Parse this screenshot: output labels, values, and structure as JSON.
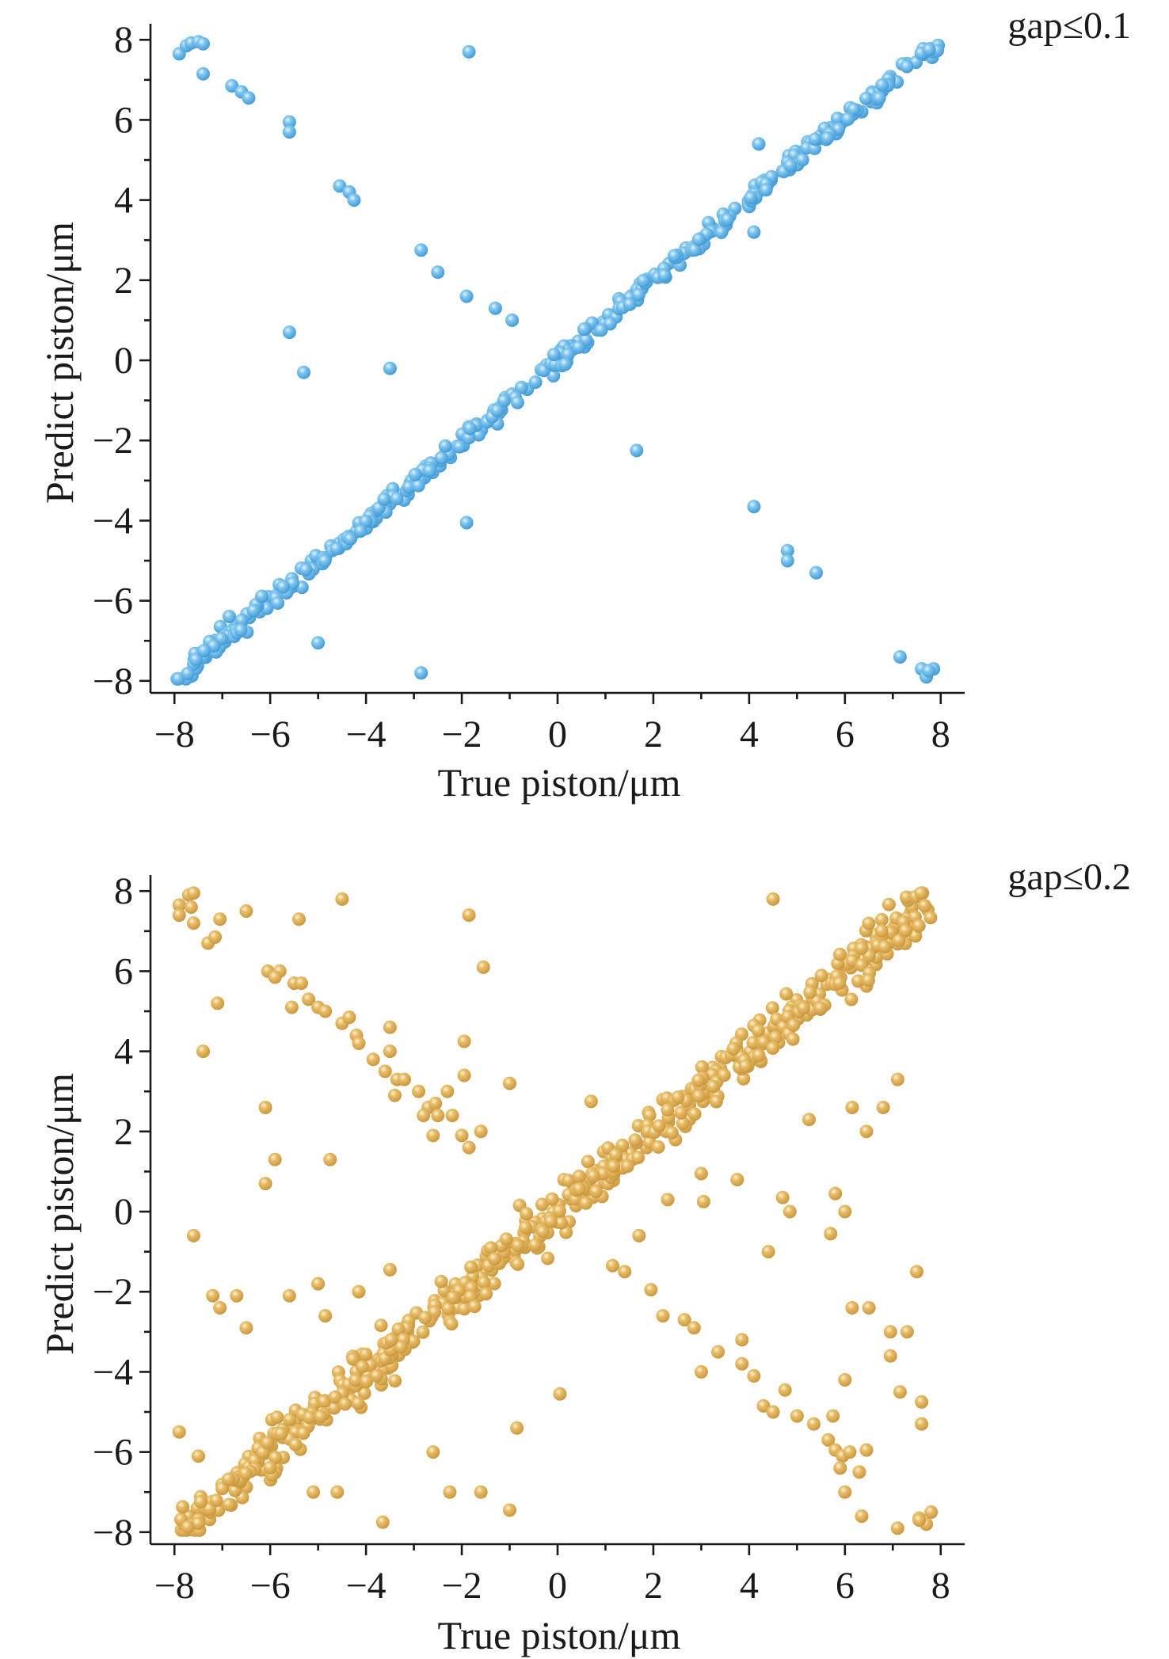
{
  "chart_data": [
    {
      "type": "scatter",
      "annotation": "gap≤0.1",
      "xlabel": "True piston/μm",
      "ylabel": "Predict piston/μm",
      "xlim": [
        -8.5,
        8.5
      ],
      "ylim": [
        -8.3,
        8.4
      ],
      "xticks": [
        -8,
        -6,
        -4,
        -2,
        0,
        2,
        4,
        6,
        8
      ],
      "yticks": [
        -8,
        -6,
        -4,
        -2,
        0,
        2,
        4,
        6,
        8
      ],
      "xtick_labels": [
        "−8",
        "−6",
        "−4",
        "−2",
        "0",
        "2",
        "4",
        "6",
        "8"
      ],
      "ytick_labels": [
        "−8",
        "−6",
        "−4",
        "−2",
        "0",
        "2",
        "4",
        "6",
        "8"
      ],
      "grid": false,
      "marker_color": "#6bb8e8",
      "series": [
        {
          "diagonal": {
            "x_range": [
              -7.95,
              7.95
            ],
            "n": 380,
            "noise": 0.13,
            "seed": 11
          },
          "points": [
            [
              -7.9,
              7.65
            ],
            [
              -7.75,
              7.85
            ],
            [
              -7.65,
              7.92
            ],
            [
              -7.5,
              7.95
            ],
            [
              -7.4,
              7.9
            ],
            [
              -7.4,
              7.15
            ],
            [
              -6.8,
              6.85
            ],
            [
              -6.6,
              6.7
            ],
            [
              -6.45,
              6.55
            ],
            [
              -5.6,
              5.95
            ],
            [
              -5.6,
              5.7
            ],
            [
              -5.6,
              0.7
            ],
            [
              -5.3,
              -0.3
            ],
            [
              -4.55,
              4.35
            ],
            [
              -4.35,
              4.2
            ],
            [
              -4.25,
              4.0
            ],
            [
              -3.5,
              -0.2
            ],
            [
              -2.85,
              2.75
            ],
            [
              -2.5,
              2.2
            ],
            [
              -1.9,
              1.6
            ],
            [
              -1.3,
              1.3
            ],
            [
              -0.95,
              1.0
            ],
            [
              -1.85,
              7.7
            ],
            [
              -1.9,
              -4.05
            ],
            [
              -2.85,
              -7.8
            ],
            [
              -5.0,
              -7.05
            ],
            [
              1.65,
              -2.25
            ],
            [
              4.1,
              -3.65
            ],
            [
              4.8,
              -4.75
            ],
            [
              4.8,
              -5.0
            ],
            [
              5.4,
              -5.3
            ],
            [
              4.2,
              5.4
            ],
            [
              4.1,
              3.2
            ],
            [
              7.15,
              -7.4
            ],
            [
              7.6,
              -7.7
            ],
            [
              7.7,
              -7.9
            ],
            [
              7.85,
              -7.7
            ],
            [
              7.75,
              -7.75
            ]
          ]
        }
      ]
    },
    {
      "type": "scatter",
      "annotation": "gap≤0.2",
      "xlabel": "True piston/μm",
      "ylabel": "Predict piston/μm",
      "xlim": [
        -8.5,
        8.5
      ],
      "ylim": [
        -8.3,
        8.4
      ],
      "xticks": [
        -8,
        -6,
        -4,
        -2,
        0,
        2,
        4,
        6,
        8
      ],
      "yticks": [
        -8,
        -6,
        -4,
        -2,
        0,
        2,
        4,
        6,
        8
      ],
      "xtick_labels": [
        "−8",
        "−6",
        "−4",
        "−2",
        "0",
        "2",
        "4",
        "6",
        "8"
      ],
      "ytick_labels": [
        "−8",
        "−6",
        "−4",
        "−2",
        "0",
        "2",
        "4",
        "6",
        "8"
      ],
      "grid": false,
      "marker_color": "#e2b458",
      "series": [
        {
          "diagonal": {
            "x_range": [
              -7.95,
              7.95
            ],
            "n": 560,
            "noise": 0.32,
            "seed": 29
          },
          "points": [
            [
              -7.9,
              7.65
            ],
            [
              -7.9,
              7.4
            ],
            [
              -7.7,
              7.9
            ],
            [
              -7.6,
              7.95
            ],
            [
              -7.65,
              7.6
            ],
            [
              -7.6,
              7.2
            ],
            [
              -7.05,
              7.3
            ],
            [
              -7.3,
              6.7
            ],
            [
              -7.15,
              6.85
            ],
            [
              -6.5,
              7.5
            ],
            [
              -5.4,
              7.3
            ],
            [
              -4.5,
              7.8
            ],
            [
              -1.85,
              7.4
            ],
            [
              -1.55,
              6.1
            ],
            [
              -6.05,
              6.0
            ],
            [
              -5.8,
              6.0
            ],
            [
              -5.9,
              5.85
            ],
            [
              -5.5,
              5.7
            ],
            [
              -5.35,
              5.7
            ],
            [
              -5.55,
              5.1
            ],
            [
              -5.2,
              5.3
            ],
            [
              -5.0,
              5.1
            ],
            [
              -4.85,
              5.0
            ],
            [
              -4.5,
              4.7
            ],
            [
              -4.35,
              4.85
            ],
            [
              -4.2,
              4.4
            ],
            [
              -4.15,
              4.2
            ],
            [
              -3.85,
              3.8
            ],
            [
              -3.6,
              3.5
            ],
            [
              -3.5,
              4.6
            ],
            [
              -3.5,
              4.0
            ],
            [
              -3.35,
              3.3
            ],
            [
              -3.4,
              2.9
            ],
            [
              -3.2,
              3.3
            ],
            [
              -2.9,
              3.0
            ],
            [
              -2.7,
              2.6
            ],
            [
              -2.8,
              2.4
            ],
            [
              -2.55,
              2.7
            ],
            [
              -2.5,
              2.4
            ],
            [
              -2.6,
              1.9
            ],
            [
              -2.3,
              3.0
            ],
            [
              -2.2,
              2.4
            ],
            [
              -1.95,
              4.25
            ],
            [
              -1.95,
              3.4
            ],
            [
              -2.0,
              1.9
            ],
            [
              -1.85,
              1.6
            ],
            [
              -1.6,
              2.0
            ],
            [
              -1.0,
              3.2
            ],
            [
              -7.1,
              5.2
            ],
            [
              -7.4,
              4.0
            ],
            [
              -6.1,
              2.6
            ],
            [
              -5.9,
              1.3
            ],
            [
              -6.1,
              0.7
            ],
            [
              -4.75,
              1.3
            ],
            [
              -7.6,
              -0.6
            ],
            [
              -7.2,
              -2.1
            ],
            [
              -7.05,
              -2.4
            ],
            [
              -6.7,
              -2.1
            ],
            [
              -6.5,
              -2.9
            ],
            [
              -5.6,
              -2.1
            ],
            [
              -5.0,
              -1.8
            ],
            [
              -4.85,
              -2.6
            ],
            [
              -4.15,
              -2.0
            ],
            [
              -3.5,
              -1.45
            ],
            [
              -7.9,
              -5.5
            ],
            [
              -7.5,
              -6.1
            ],
            [
              -5.1,
              -7.0
            ],
            [
              -4.6,
              -7.0
            ],
            [
              -3.65,
              -7.75
            ],
            [
              -2.6,
              -6.0
            ],
            [
              -2.25,
              -7.0
            ],
            [
              -1.6,
              -7.0
            ],
            [
              -1.0,
              -7.45
            ],
            [
              -0.85,
              -5.4
            ],
            [
              0.05,
              -4.55
            ],
            [
              0.7,
              2.75
            ],
            [
              1.15,
              -1.35
            ],
            [
              1.4,
              -1.5
            ],
            [
              1.7,
              -0.6
            ],
            [
              1.95,
              -1.95
            ],
            [
              2.2,
              -2.6
            ],
            [
              2.65,
              -2.7
            ],
            [
              2.85,
              -2.9
            ],
            [
              3.0,
              -4.0
            ],
            [
              3.35,
              -3.5
            ],
            [
              3.85,
              -3.8
            ],
            [
              3.85,
              -3.2
            ],
            [
              4.1,
              -4.1
            ],
            [
              4.3,
              -4.85
            ],
            [
              4.75,
              -4.45
            ],
            [
              4.5,
              -5.0
            ],
            [
              5.0,
              -5.1
            ],
            [
              5.35,
              -5.3
            ],
            [
              5.65,
              -5.7
            ],
            [
              5.75,
              -5.1
            ],
            [
              5.8,
              -5.95
            ],
            [
              5.95,
              -6.1
            ],
            [
              5.9,
              -6.4
            ],
            [
              6.1,
              -6.0
            ],
            [
              6.3,
              -6.5
            ],
            [
              6.45,
              -5.95
            ],
            [
              6.0,
              -7.0
            ],
            [
              6.35,
              -7.6
            ],
            [
              6.0,
              -4.2
            ],
            [
              7.1,
              -7.9
            ],
            [
              7.55,
              -7.65
            ],
            [
              7.7,
              -7.8
            ],
            [
              7.8,
              -7.5
            ],
            [
              7.55,
              -7.7
            ],
            [
              7.15,
              -4.5
            ],
            [
              6.95,
              -3.6
            ],
            [
              6.95,
              -3.0
            ],
            [
              7.3,
              -3.0
            ],
            [
              7.6,
              -4.75
            ],
            [
              7.6,
              -5.3
            ],
            [
              7.5,
              -1.5
            ],
            [
              6.15,
              -2.4
            ],
            [
              6.5,
              -2.4
            ],
            [
              4.4,
              -1.0
            ],
            [
              5.25,
              2.3
            ],
            [
              6.15,
              2.6
            ],
            [
              6.8,
              2.6
            ],
            [
              6.45,
              2.0
            ],
            [
              7.1,
              3.3
            ],
            [
              4.7,
              0.35
            ],
            [
              4.85,
              0.0
            ],
            [
              5.8,
              0.45
            ],
            [
              6.0,
              -0.0
            ],
            [
              5.7,
              -0.55
            ],
            [
              3.0,
              0.95
            ],
            [
              3.05,
              0.25
            ],
            [
              3.75,
              0.8
            ],
            [
              2.3,
              0.3
            ],
            [
              4.5,
              7.8
            ],
            [
              4.2,
              3.9
            ]
          ]
        }
      ]
    }
  ]
}
